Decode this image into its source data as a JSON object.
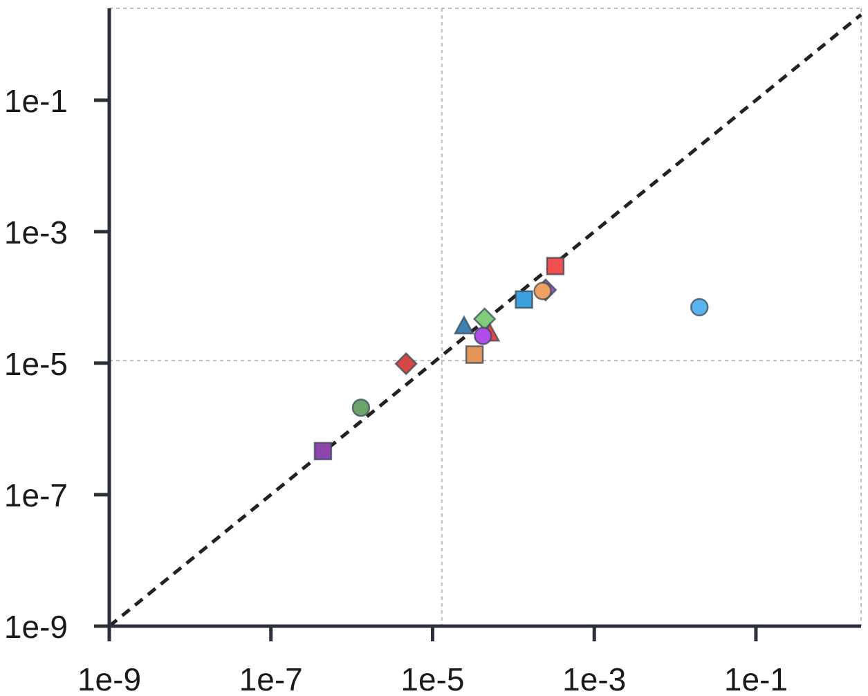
{
  "chart_data": {
    "type": "scatter",
    "title": "",
    "xlabel": "",
    "ylabel": "",
    "xscale": "log",
    "yscale": "log",
    "xlim": [
      1e-09,
      2.0
    ],
    "ylim": [
      1e-09,
      2.5
    ],
    "xticks": [
      {
        "value": 1e-09,
        "label": "1e-9"
      },
      {
        "value": 1e-07,
        "label": "1e-7"
      },
      {
        "value": 1e-05,
        "label": "1e-5"
      },
      {
        "value": 0.001,
        "label": "1e-3"
      },
      {
        "value": 0.1,
        "label": "1e-1"
      }
    ],
    "yticks": [
      {
        "value": 1e-09,
        "label": "1e-9"
      },
      {
        "value": 1e-07,
        "label": "1e-7"
      },
      {
        "value": 1e-05,
        "label": "1e-5"
      },
      {
        "value": 0.001,
        "label": "1e-3"
      },
      {
        "value": 0.1,
        "label": "1e-1"
      }
    ],
    "grid": {
      "x": [
        1.3e-05
      ],
      "y": [
        1.1e-05,
        2.5
      ]
    },
    "reference_line": {
      "style": "dashed",
      "color": "#222222",
      "from": [
        1e-09,
        1e-09
      ],
      "to": [
        2.0,
        2.0
      ]
    },
    "points": [
      {
        "x": 4.4e-07,
        "y": 4.6e-07,
        "shape": "square",
        "color": "#8e44ad"
      },
      {
        "x": 1.3e-06,
        "y": 2.1e-06,
        "shape": "circle",
        "color": "#6aa66a"
      },
      {
        "x": 4.7e-06,
        "y": 9.8e-06,
        "shape": "diamond",
        "color": "#d44848"
      },
      {
        "x": 3.3e-05,
        "y": 1.35e-05,
        "shape": "square",
        "color": "#e6955a"
      },
      {
        "x": 2.45e-05,
        "y": 3.6e-05,
        "shape": "triangle",
        "color": "#3d82b3"
      },
      {
        "x": 4.4e-05,
        "y": 4.7e-05,
        "shape": "diamond",
        "color": "#82cc7a"
      },
      {
        "x": 5.1e-05,
        "y": 2.8e-05,
        "shape": "triangle",
        "color": "#e84848"
      },
      {
        "x": 4.2e-05,
        "y": 2.6e-05,
        "shape": "circle",
        "color": "#b04de8"
      },
      {
        "x": 0.000135,
        "y": 9.3e-05,
        "shape": "square",
        "color": "#3aa0de"
      },
      {
        "x": 0.00025,
        "y": 0.00013,
        "shape": "diamond",
        "color": "#9b59b6"
      },
      {
        "x": 0.00023,
        "y": 0.000125,
        "shape": "circle",
        "color": "#f0a060"
      },
      {
        "x": 0.00033,
        "y": 0.0003,
        "shape": "square",
        "color": "#f05050"
      },
      {
        "x": 0.02,
        "y": 7.1e-05,
        "shape": "circle",
        "color": "#5ab4f0"
      }
    ]
  }
}
